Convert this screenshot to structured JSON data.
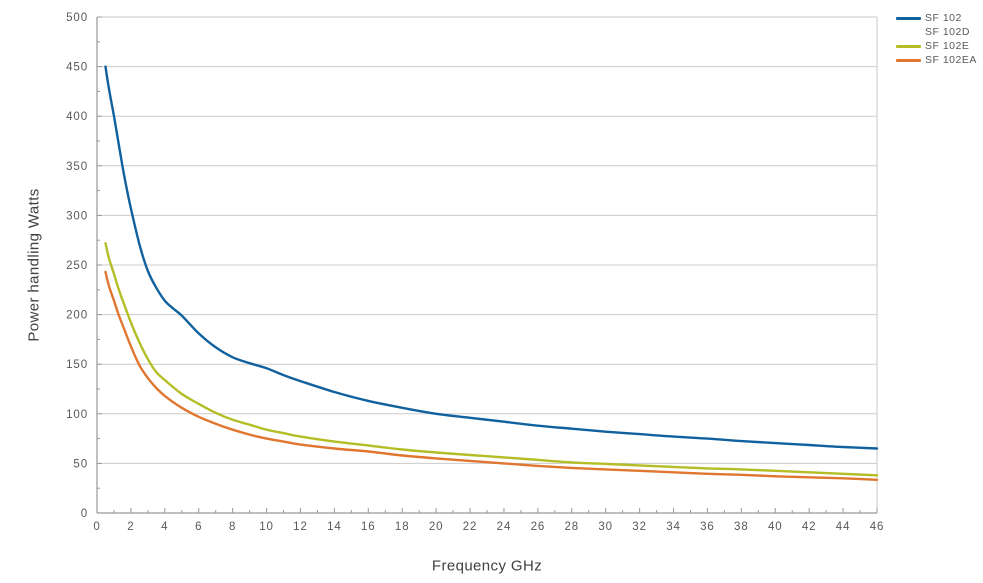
{
  "chart_data": {
    "type": "line",
    "title": "",
    "xlabel": "Frequency GHz",
    "ylabel": "Power handling Watts",
    "xlim": [
      0,
      46
    ],
    "ylim": [
      0,
      500
    ],
    "x_label_step": 2,
    "x_minor_step": 1,
    "y_label_step": 50,
    "y_minor_step": 25,
    "grid": "horizontal-only",
    "frame": "left-bottom-dark, top-right-light",
    "legend_position": "top-right-outside",
    "colors": {
      "grid": "#cbccce",
      "frame_light": "#c8c9cb",
      "axis": "#96989b",
      "tick_text": "#58595b",
      "axis_title_text": "#414042",
      "background": "#ffffff"
    },
    "legend": [
      {
        "label": "SF 102",
        "color": "#11619e"
      },
      {
        "label": "SF 102D",
        "color": ""
      },
      {
        "label": "SF 102E",
        "color": "#b4bd25"
      },
      {
        "label": "SF 102EA",
        "color": "#e0762f"
      }
    ],
    "series": [
      {
        "name": "SF 102",
        "color": "#11619e",
        "points": [
          [
            0.5,
            450
          ],
          [
            0.7,
            428
          ],
          [
            1,
            400
          ],
          [
            1.25,
            375
          ],
          [
            1.5,
            350
          ],
          [
            1.75,
            327
          ],
          [
            2,
            307
          ],
          [
            2.5,
            271
          ],
          [
            3,
            244
          ],
          [
            3.5,
            227
          ],
          [
            4,
            214
          ],
          [
            4.5,
            206
          ],
          [
            5,
            199
          ],
          [
            6,
            181
          ],
          [
            7,
            167
          ],
          [
            8,
            157
          ],
          [
            9,
            151
          ],
          [
            10,
            146
          ],
          [
            11,
            139
          ],
          [
            12,
            133
          ],
          [
            14,
            122
          ],
          [
            16,
            113
          ],
          [
            18,
            106
          ],
          [
            20,
            100
          ],
          [
            22,
            96
          ],
          [
            24,
            92
          ],
          [
            26,
            88
          ],
          [
            28,
            85
          ],
          [
            30,
            82
          ],
          [
            32,
            79.5
          ],
          [
            34,
            77
          ],
          [
            36,
            75
          ],
          [
            38,
            72.5
          ],
          [
            40,
            70.5
          ],
          [
            42,
            68.5
          ],
          [
            44,
            66.5
          ],
          [
            46,
            65
          ]
        ]
      },
      {
        "name": "SF 102D",
        "color": "",
        "points": []
      },
      {
        "name": "SF 102E",
        "color": "#b4bd25",
        "points": [
          [
            0.5,
            272
          ],
          [
            0.7,
            257
          ],
          [
            1,
            241
          ],
          [
            1.25,
            227
          ],
          [
            1.5,
            215
          ],
          [
            2,
            192
          ],
          [
            2.5,
            172
          ],
          [
            3,
            155
          ],
          [
            3.5,
            142
          ],
          [
            4,
            134
          ],
          [
            5,
            120
          ],
          [
            6,
            110
          ],
          [
            7,
            101
          ],
          [
            8,
            94
          ],
          [
            9,
            89
          ],
          [
            10,
            84
          ],
          [
            11,
            80.5
          ],
          [
            12,
            77
          ],
          [
            14,
            72
          ],
          [
            16,
            68
          ],
          [
            18,
            64
          ],
          [
            20,
            61
          ],
          [
            22,
            58.5
          ],
          [
            24,
            56
          ],
          [
            26,
            53.5
          ],
          [
            28,
            51
          ],
          [
            30,
            49.5
          ],
          [
            32,
            48
          ],
          [
            34,
            46.5
          ],
          [
            36,
            45
          ],
          [
            38,
            44
          ],
          [
            40,
            42.5
          ],
          [
            42,
            41
          ],
          [
            44,
            39.5
          ],
          [
            46,
            38
          ]
        ]
      },
      {
        "name": "SF 102EA",
        "color": "#e0762f",
        "points": [
          [
            0.5,
            243
          ],
          [
            0.7,
            229
          ],
          [
            1,
            214
          ],
          [
            1.25,
            201
          ],
          [
            1.5,
            190
          ],
          [
            2,
            168
          ],
          [
            2.5,
            149
          ],
          [
            3,
            136
          ],
          [
            3.5,
            126
          ],
          [
            4,
            118
          ],
          [
            5,
            106
          ],
          [
            6,
            97
          ],
          [
            7,
            90
          ],
          [
            8,
            84
          ],
          [
            9,
            79
          ],
          [
            10,
            75
          ],
          [
            11,
            72
          ],
          [
            12,
            69
          ],
          [
            14,
            65
          ],
          [
            16,
            62
          ],
          [
            18,
            58
          ],
          [
            20,
            55
          ],
          [
            22,
            52.5
          ],
          [
            24,
            50
          ],
          [
            26,
            47.5
          ],
          [
            28,
            45.5
          ],
          [
            30,
            44
          ],
          [
            32,
            42.5
          ],
          [
            34,
            41
          ],
          [
            36,
            39.5
          ],
          [
            38,
            38.5
          ],
          [
            40,
            37
          ],
          [
            42,
            36
          ],
          [
            44,
            35
          ],
          [
            46,
            33.5
          ]
        ]
      }
    ]
  }
}
